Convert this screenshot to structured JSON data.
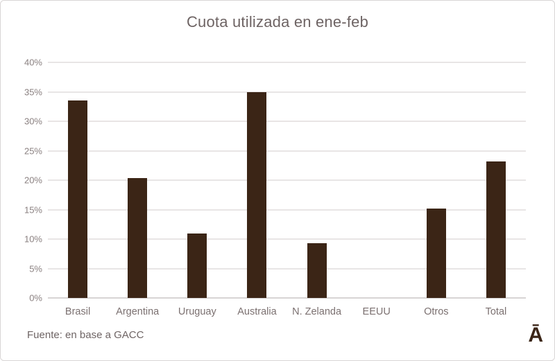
{
  "chart_data": {
    "type": "bar",
    "title": "Cuota utilizada en ene-feb",
    "categories": [
      "Brasil",
      "Argentina",
      "Uruguay",
      "Australia",
      "N. Zelanda",
      "EEUU",
      "Otros",
      "Total"
    ],
    "values": [
      33.5,
      20.3,
      10.9,
      35.0,
      9.3,
      0,
      15.2,
      23.2
    ],
    "xlabel": "",
    "ylabel": "",
    "ylim": [
      0,
      40
    ],
    "ytick_step": 5,
    "ytick_suffix": "%",
    "grid": true,
    "legend": "none",
    "bar_color": "#3b2516"
  },
  "footer": {
    "source": "Fuente: en base a GACC",
    "logo_text": "Ā"
  }
}
